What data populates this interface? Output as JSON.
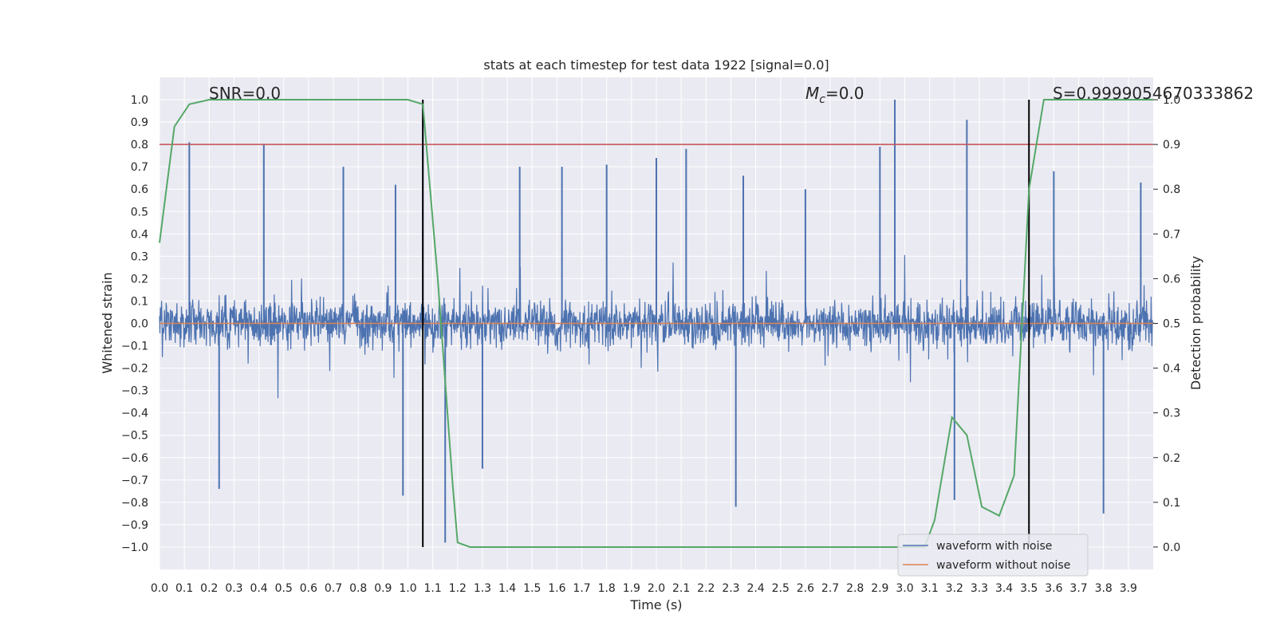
{
  "chart_data": {
    "type": "line",
    "title": "stats at each timestep for test data 1922 [signal=0.0]",
    "xlabel": "Time (s)",
    "ylabel": "Whitened strain",
    "ylabel_right": "Detection probability",
    "xlim": [
      0.0,
      4.0
    ],
    "ylim": [
      -1.1,
      1.1
    ],
    "ylim_right": [
      -0.05,
      1.05
    ],
    "x_ticks": [
      "0.0",
      "0.1",
      "0.2",
      "0.3",
      "0.4",
      "0.5",
      "0.6",
      "0.7",
      "0.8",
      "0.9",
      "1.0",
      "1.1",
      "1.2",
      "1.3",
      "1.4",
      "1.5",
      "1.6",
      "1.7",
      "1.8",
      "1.9",
      "2.0",
      "2.1",
      "2.2",
      "2.3",
      "2.4",
      "2.5",
      "2.6",
      "2.7",
      "2.8",
      "2.9",
      "3.0",
      "3.1",
      "3.2",
      "3.3",
      "3.4",
      "3.5",
      "3.6",
      "3.7",
      "3.8",
      "3.9"
    ],
    "y_ticks": [
      "1.0",
      "0.9",
      "0.8",
      "0.7",
      "0.6",
      "0.5",
      "0.4",
      "0.3",
      "0.2",
      "0.1",
      "0.0",
      "−0.1",
      "−0.2",
      "−0.3",
      "−0.4",
      "−0.5",
      "−0.6",
      "−0.7",
      "−0.8",
      "−0.9",
      "−1.0"
    ],
    "y_ticks_right": [
      "1.0",
      "0.9",
      "0.8",
      "0.7",
      "0.6",
      "0.5",
      "0.4",
      "0.3",
      "0.2",
      "0.1",
      "0.0"
    ],
    "grid": true,
    "annotations": {
      "snr": "SNR=0.0",
      "mc_symbol": "M",
      "mc_sub": "c",
      "mc_value": "=0.0",
      "score": "S=0.9999054670333862"
    },
    "threshold": {
      "value": 0.8,
      "color": "#c44e52"
    },
    "vlines": [
      1.06,
      3.5
    ],
    "legend": {
      "placement": "lower-right",
      "entries": [
        "waveform with noise",
        "waveform without noise"
      ]
    },
    "series": [
      {
        "name": "waveform with noise",
        "color": "#4c72b0",
        "axis": "left",
        "spikes": [
          [
            0.12,
            0.81
          ],
          [
            0.42,
            0.8
          ],
          [
            0.74,
            0.7
          ],
          [
            0.95,
            0.62
          ],
          [
            1.06,
            1.0
          ],
          [
            1.15,
            -0.98
          ],
          [
            1.45,
            0.7
          ],
          [
            1.8,
            0.71
          ],
          [
            2.0,
            0.74
          ],
          [
            2.12,
            0.78
          ],
          [
            2.35,
            0.66
          ],
          [
            2.9,
            0.79
          ],
          [
            2.96,
            1.0
          ],
          [
            3.25,
            0.91
          ],
          [
            3.2,
            -0.79
          ],
          [
            0.24,
            -0.74
          ],
          [
            0.98,
            -0.77
          ],
          [
            1.3,
            -0.65
          ],
          [
            2.32,
            -0.82
          ],
          [
            3.8,
            -0.85
          ],
          [
            3.95,
            0.63
          ],
          [
            1.62,
            0.7
          ],
          [
            2.6,
            0.6
          ],
          [
            3.6,
            0.68
          ]
        ]
      },
      {
        "name": "waveform without noise",
        "color": "#dd8452",
        "axis": "left",
        "value": 0.0
      },
      {
        "name": "detection probability",
        "color": "#55a868",
        "axis": "right",
        "x": [
          0.0,
          0.06,
          0.12,
          0.2,
          0.3,
          1.0,
          1.06,
          1.12,
          1.18,
          1.2,
          1.25,
          1.4,
          1.8,
          2.5,
          3.08,
          3.12,
          3.19,
          3.25,
          3.31,
          3.38,
          3.44,
          3.5,
          3.56,
          3.62,
          4.0
        ],
        "y": [
          0.68,
          0.94,
          0.99,
          1.0,
          1.0,
          1.0,
          0.99,
          0.6,
          0.14,
          0.01,
          0.0,
          0.0,
          0.0,
          0.0,
          0.0,
          0.06,
          0.29,
          0.25,
          0.09,
          0.07,
          0.16,
          0.8,
          1.0,
          1.0,
          1.0
        ]
      }
    ]
  }
}
